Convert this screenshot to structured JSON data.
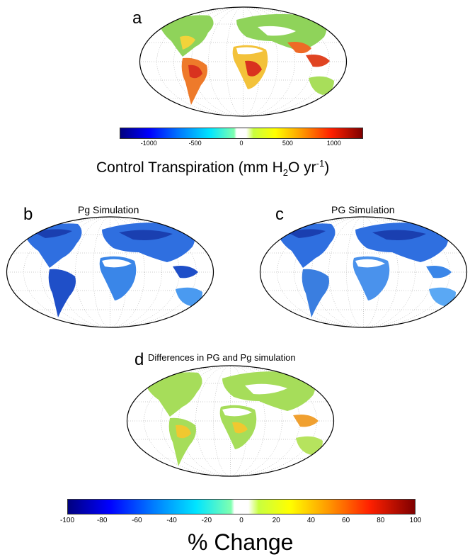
{
  "panel_a": {
    "letter": "a",
    "colorbar": {
      "ticks": [
        "-1000",
        "-500",
        "0",
        "500",
        "1000"
      ],
      "range": [
        -1200,
        1200
      ],
      "title_main": "Control Transpiration (mm H",
      "title_sub": "2",
      "title_mid": "O yr",
      "title_sup": "-1",
      "title_end": ")"
    }
  },
  "panel_b": {
    "letter": "b",
    "title": "Pg Simulation"
  },
  "panel_c": {
    "letter": "c",
    "title": "PG Simulation"
  },
  "panel_d": {
    "letter": "d",
    "title": "Differences in PG and Pg simulation",
    "colorbar": {
      "ticks": [
        "-100",
        "-80",
        "-60",
        "-40",
        "-20",
        "0",
        "20",
        "40",
        "60",
        "80",
        "100"
      ],
      "range": [
        -100,
        100
      ],
      "title": "% Change"
    }
  },
  "colors": {
    "map_outline": "#000000",
    "grid": "#9a9a9a",
    "land_a": "#8fd35a",
    "land_bc": "#2f6fe0",
    "land_d": "#a6dd5a"
  }
}
